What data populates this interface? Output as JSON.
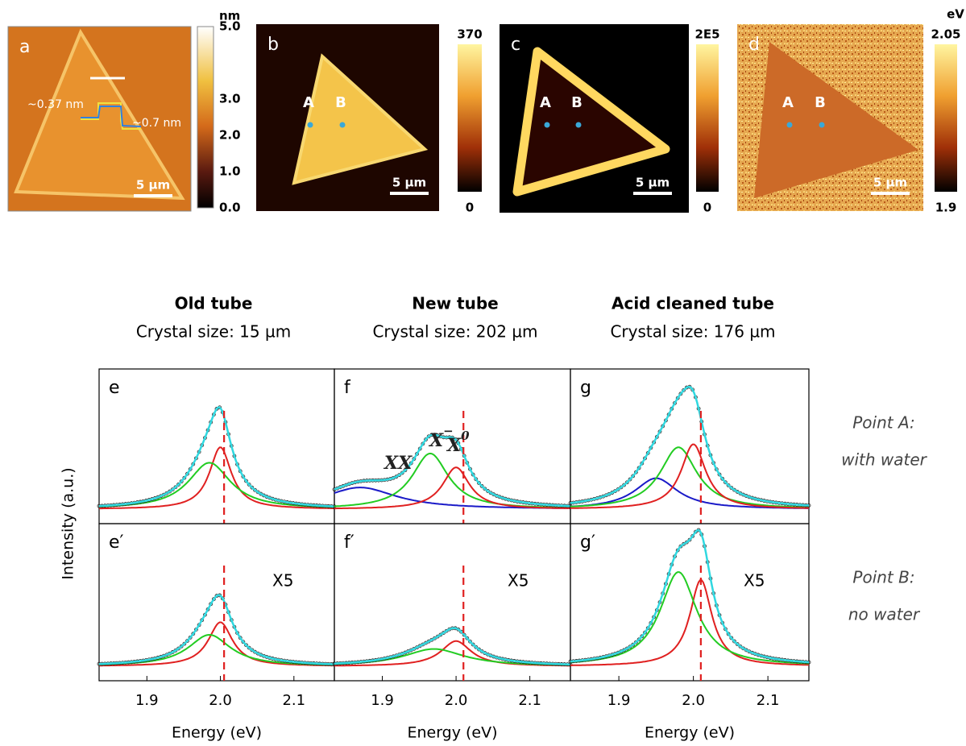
{
  "maps": [
    {
      "label": "a",
      "color_bar": {
        "unit": "nm",
        "lim": [
          0,
          5
        ],
        "ticks": [
          {
            "value": 5,
            "label": "5.0"
          },
          {
            "value": 3,
            "label": "3.0"
          },
          {
            "value": 2,
            "label": "2.0"
          },
          {
            "value": 1,
            "label": "1.0"
          },
          {
            "value": 0,
            "label": "0.0"
          }
        ]
      },
      "scale_bar": "5 µm",
      "annotations": [
        "~0.37 nm",
        "~0.7 nm"
      ]
    },
    {
      "label": "b",
      "color_bar": {
        "lim": [
          0,
          370
        ],
        "ticks": [
          370,
          0
        ]
      },
      "scale_bar": "5 µm",
      "points": [
        "A",
        "B"
      ]
    },
    {
      "label": "c",
      "color_bar": {
        "lim": [
          0,
          200000
        ],
        "ticks": [
          {
            "value": 200000,
            "label": "2E5"
          },
          0
        ]
      },
      "scale_bar": "5 µm",
      "points": [
        "A",
        "B"
      ]
    },
    {
      "label": "d",
      "color_bar": {
        "unit": "eV",
        "lim": [
          1.9,
          2.05
        ],
        "ticks": [
          2.05,
          1.9
        ]
      },
      "scale_bar": "5 µm",
      "points": [
        "A",
        "B"
      ]
    }
  ],
  "spectra": {
    "y_label": "Intensity (a.u.)",
    "x_label": "Energy (eV)",
    "xlim": [
      1.835,
      2.155
    ],
    "xticks": [
      1.9,
      {
        "value": 2,
        "label": "2.0"
      },
      2.1
    ],
    "columns": [
      {
        "title": "Old tube",
        "subtitle": "Crystal size: 15 µm"
      },
      {
        "title": "New tube",
        "subtitle": "Crystal size: 202 µm"
      },
      {
        "title": "Acid cleaned tube",
        "subtitle": "Crystal size: 176 µm"
      }
    ],
    "rows": [
      {
        "label": [
          "Point A:",
          "with water"
        ]
      },
      {
        "label": [
          "Point B:",
          "no water"
        ]
      }
    ],
    "panels": [
      [
        {
          "label": "e",
          "dashed_line": 2.005,
          "peaks": [
            {
              "color": "#e02020",
              "center": 2.0,
              "amplitude": 0.4,
              "width": 0.018
            },
            {
              "color": "#22cc22",
              "center": 1.985,
              "amplitude": 0.3,
              "width": 0.035
            }
          ]
        },
        {
          "label": "f",
          "dashed_line": 2.01,
          "peaks": [
            {
              "color": "#1a1ac8",
              "center": 1.87,
              "amplitude": 0.14,
              "width": 0.06
            },
            {
              "color": "#22cc22",
              "center": 1.965,
              "amplitude": 0.36,
              "width": 0.03
            },
            {
              "color": "#e02020",
              "center": 2.0,
              "amplitude": 0.27,
              "width": 0.022
            }
          ],
          "annotations": [
            {
              "text": "XX"
            },
            {
              "text": "X",
              "sup": "−"
            },
            {
              "text": "X",
              "sup": "0"
            }
          ]
        },
        {
          "label": "g",
          "dashed_line": 2.01,
          "peaks": [
            {
              "color": "#1a1ac8",
              "center": 1.95,
              "amplitude": 0.2,
              "width": 0.035
            },
            {
              "color": "#22cc22",
              "center": 1.98,
              "amplitude": 0.4,
              "width": 0.03
            },
            {
              "color": "#e02020",
              "center": 2.0,
              "amplitude": 0.42,
              "width": 0.02
            }
          ]
        }
      ],
      [
        {
          "label": "e′",
          "dashed_line": 2.005,
          "note": "X5",
          "peaks": [
            {
              "color": "#e02020",
              "center": 2.0,
              "amplitude": 0.28,
              "width": 0.02
            },
            {
              "color": "#22cc22",
              "center": 1.985,
              "amplitude": 0.2,
              "width": 0.035
            }
          ]
        },
        {
          "label": "f′",
          "dashed_line": 2.01,
          "note": "X5",
          "peaks": [
            {
              "color": "#e02020",
              "center": 2.0,
              "amplitude": 0.16,
              "width": 0.025
            },
            {
              "color": "#22cc22",
              "center": 1.97,
              "amplitude": 0.11,
              "width": 0.05
            }
          ]
        },
        {
          "label": "g′",
          "dashed_line": 2.01,
          "note": "X5",
          "peaks": [
            {
              "color": "#e02020",
              "center": 2.01,
              "amplitude": 0.55,
              "width": 0.018
            },
            {
              "color": "#22cc22",
              "center": 1.98,
              "amplitude": 0.6,
              "width": 0.03
            }
          ]
        }
      ]
    ]
  }
}
